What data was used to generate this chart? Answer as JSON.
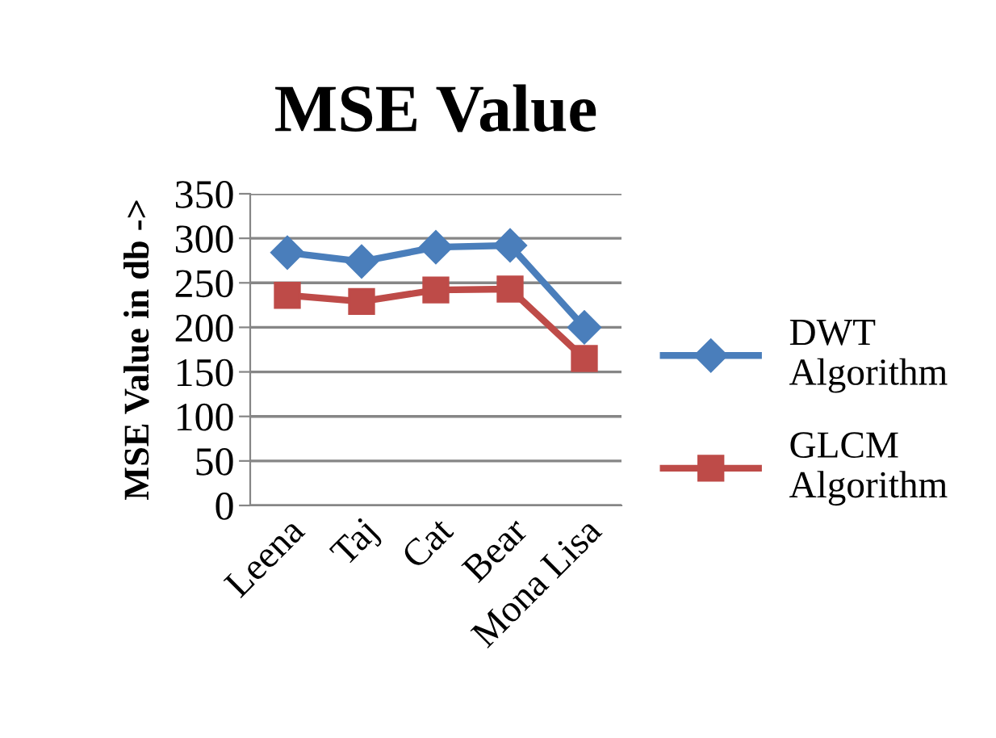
{
  "chart_data": {
    "type": "line",
    "title": "MSE Value",
    "ylabel": "MSE Value in db ->",
    "categories": [
      "Leena",
      "Taj",
      "Cat",
      "Bear",
      "Mona Lisa"
    ],
    "series": [
      {
        "name": "DWT Algorithm",
        "color": "#4a7ebb",
        "values": [
          284,
          274,
          290,
          292,
          200
        ],
        "marker": "diamond"
      },
      {
        "name": "GLCM Algorithm",
        "color": "#be4b48",
        "values": [
          236,
          229,
          242,
          243,
          165
        ],
        "marker": "square"
      }
    ],
    "ylim": [
      0,
      350
    ],
    "yticks": [
      0,
      50,
      100,
      150,
      200,
      250,
      300,
      350
    ],
    "grid": "y",
    "legend": "right",
    "line_style": "solid"
  }
}
